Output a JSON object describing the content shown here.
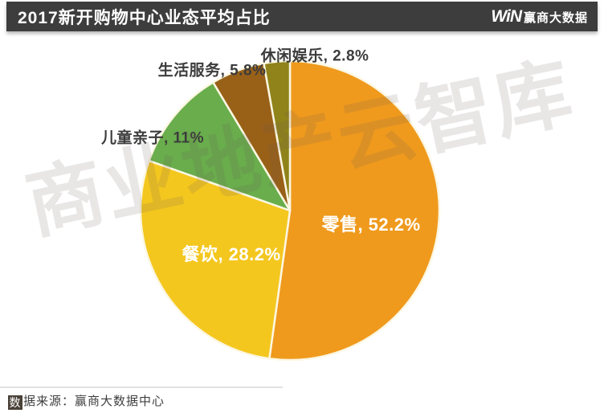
{
  "header": {
    "title": "2017新开购物中心业态平均占比",
    "logo_win": "WiN",
    "logo_text": "赢商大数据"
  },
  "watermark": "商业地产云智库",
  "footer": {
    "source_prefix_char": "数",
    "source_rest": "据来源：赢商大数据中心"
  },
  "chart_data": {
    "type": "pie",
    "title": "2017新开购物中心业态平均占比",
    "start_angle_deg": 0,
    "direction": "clockwise",
    "total": 100,
    "separator_color": "#fcf7e2",
    "slices": [
      {
        "key": "retail",
        "label": "零售",
        "value": 52.2,
        "display": "零售, 52.2%",
        "color": "#ef9a1d",
        "label_color": "#ffffff"
      },
      {
        "key": "food-beverage",
        "label": "餐饮",
        "value": 28.2,
        "display": "餐饮, 28.2%",
        "color": "#f4c71f",
        "label_color": "#ffffff"
      },
      {
        "key": "children-family",
        "label": "儿童亲子",
        "value": 11,
        "display": "儿童亲子, 11%",
        "color": "#69ad4c",
        "label_color": "#3c3c3c"
      },
      {
        "key": "life-services",
        "label": "生活服务",
        "value": 5.8,
        "display": "生活服务, 5.8%",
        "color": "#996118",
        "label_color": "#3c3c3c"
      },
      {
        "key": "leisure-entertainment",
        "label": "休闲娱乐",
        "value": 2.8,
        "display": "休闲娱乐, 2.8%",
        "color": "#8f831a",
        "label_color": "#3c3c3c"
      }
    ]
  }
}
